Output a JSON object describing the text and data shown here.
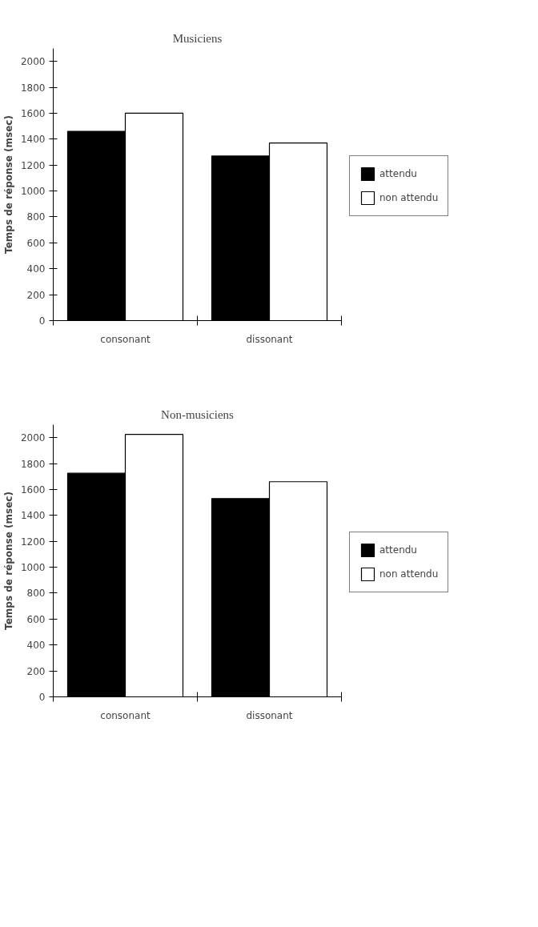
{
  "chart_data": [
    {
      "type": "bar",
      "title": "Musiciens",
      "ylabel": "Temps de réponse (msec)",
      "categories": [
        "consonant",
        "dissonant"
      ],
      "series": [
        {
          "name": "attendu",
          "color": "#000000",
          "values": [
            1460,
            1270
          ]
        },
        {
          "name": "non attendu",
          "color": "#ffffff",
          "values": [
            1600,
            1370
          ]
        }
      ],
      "ylim": [
        0,
        2100
      ],
      "yticks": [
        0,
        200,
        400,
        600,
        800,
        1000,
        1200,
        1400,
        1600,
        1800,
        2000
      ],
      "grid": false,
      "legend": "right"
    },
    {
      "type": "bar",
      "title": "Non-musiciens",
      "ylabel": "Temps de réponse (msec)",
      "categories": [
        "consonant",
        "dissonant"
      ],
      "series": [
        {
          "name": "attendu",
          "color": "#000000",
          "values": [
            1725,
            1530
          ]
        },
        {
          "name": "non attendu",
          "color": "#ffffff",
          "values": [
            2025,
            1660
          ]
        }
      ],
      "ylim": [
        0,
        2100
      ],
      "yticks": [
        0,
        200,
        400,
        600,
        800,
        1000,
        1200,
        1400,
        1600,
        1800,
        2000
      ],
      "grid": false,
      "legend": "right"
    }
  ]
}
